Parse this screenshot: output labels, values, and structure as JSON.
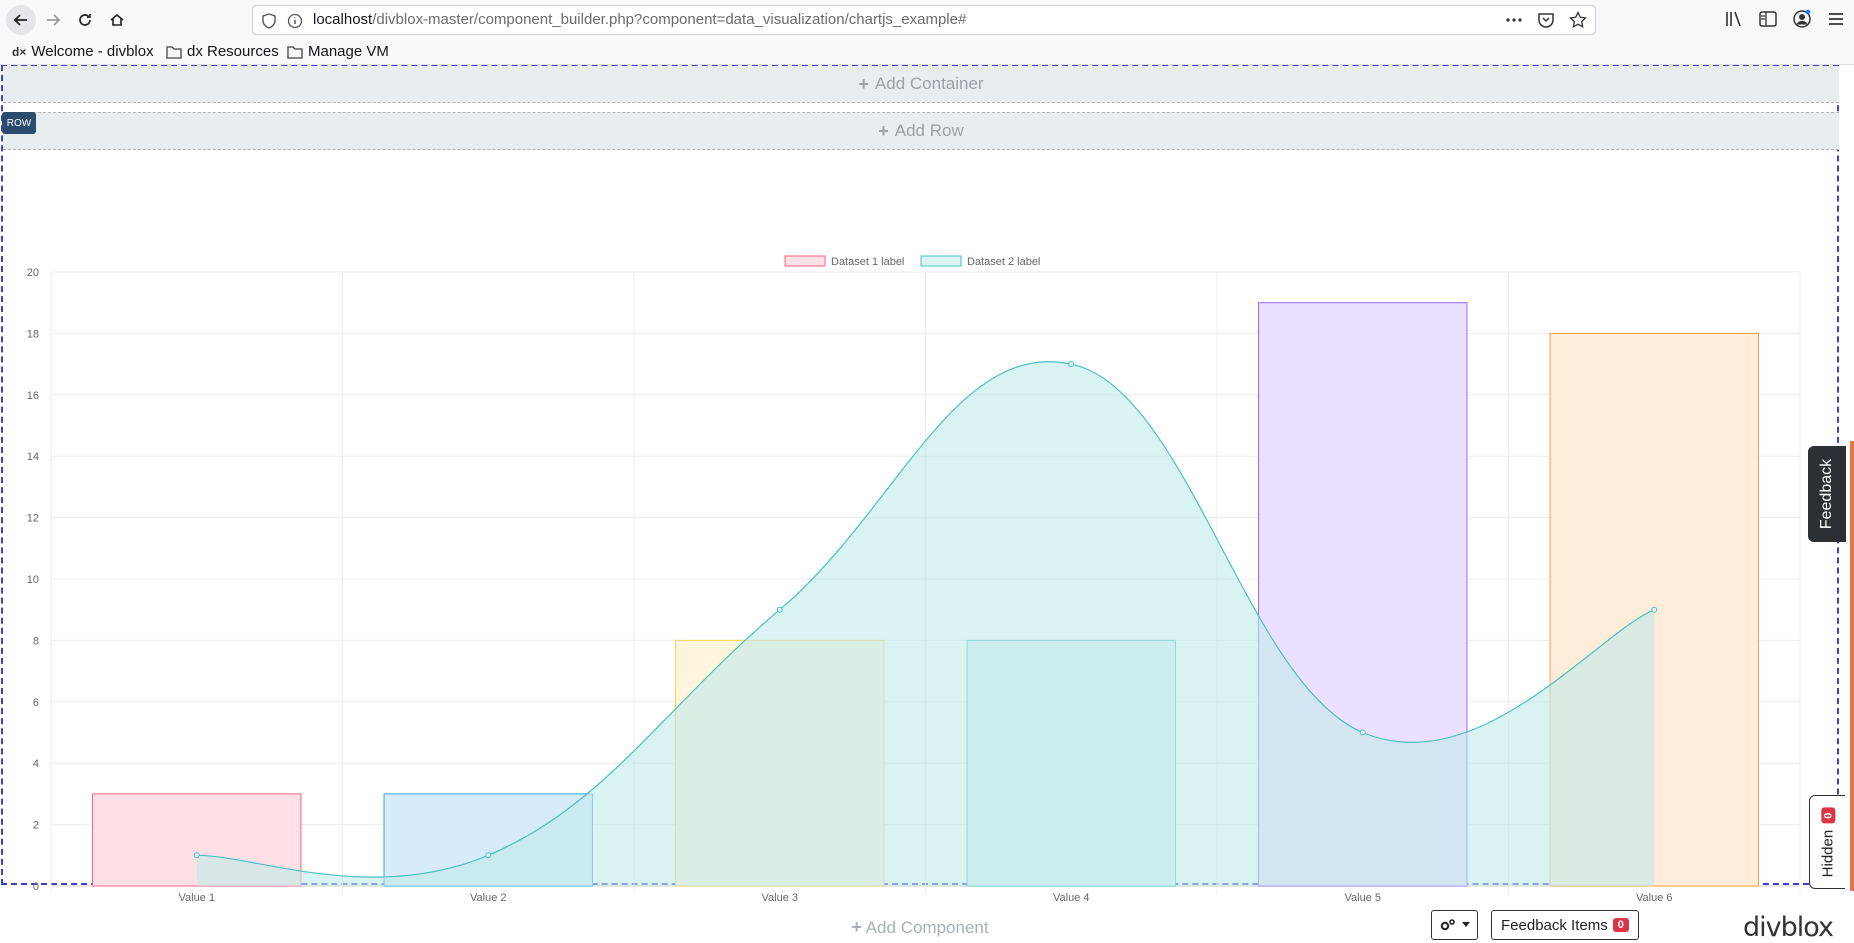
{
  "browser": {
    "url_host": "localhost",
    "url_path": "/divblox-master/component_builder.php?component=data_visualization/chartjs_example#",
    "bookmarks": [
      {
        "label": "Welcome - divblox",
        "icon": "dx-logo-icon"
      },
      {
        "label": "dx Resources",
        "icon": "folder-icon"
      },
      {
        "label": "Manage VM",
        "icon": "folder-icon"
      }
    ]
  },
  "builder": {
    "add_container": "Add Container",
    "row_badge": "ROW",
    "add_row": "Add Row",
    "add_component": "Add Component",
    "feedback_items_label": "Feedback Items",
    "feedback_items_count": "0",
    "feedback_tab": "Feedback",
    "hidden_label": "Hidden",
    "hidden_count": "0",
    "logo": "divblox"
  },
  "chart_data": {
    "type": "bar",
    "categories": [
      "Value 1",
      "Value 2",
      "Value 3",
      "Value 4",
      "Value 5",
      "Value 6"
    ],
    "series": [
      {
        "name": "Dataset 1 label",
        "type": "bar",
        "values": [
          3,
          3,
          8,
          8,
          19,
          18
        ],
        "fill_colors": [
          "#ffe0e6",
          "#d7ecfb",
          "#fff5dd",
          "#dbf2f2",
          "#ebe0ff",
          "#ffecd9"
        ],
        "border_colors": [
          "#ff6384",
          "#36a2eb",
          "#ffce56",
          "#4bc0c0",
          "#9966ff",
          "#ff9f40"
        ]
      },
      {
        "name": "Dataset 2 label",
        "type": "line",
        "values": [
          1,
          1,
          9,
          17,
          5,
          9
        ],
        "fill_color": "#bfeaea",
        "border_color": "#4bc0c0"
      }
    ],
    "ylim": [
      0,
      20
    ],
    "y_ticks": [
      0,
      2,
      4,
      6,
      8,
      10,
      12,
      14,
      16,
      18,
      20
    ],
    "grid": true,
    "legend": "top-center"
  }
}
